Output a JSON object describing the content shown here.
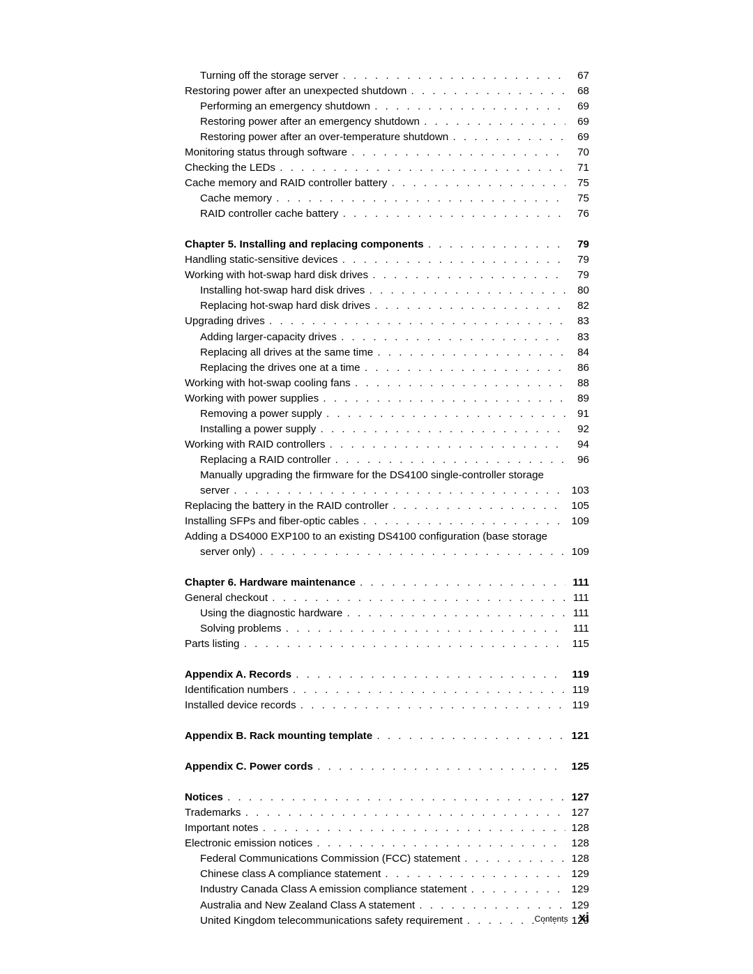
{
  "footer": {
    "label": "Contents",
    "page": "xi"
  },
  "entries": [
    {
      "label": "Turning off the storage server",
      "page": "67",
      "indent": 1,
      "bold": false
    },
    {
      "label": "Restoring power after an unexpected shutdown",
      "page": "68",
      "indent": 0,
      "bold": false
    },
    {
      "label": "Performing an emergency shutdown",
      "page": "69",
      "indent": 1,
      "bold": false
    },
    {
      "label": "Restoring power after an emergency shutdown",
      "page": "69",
      "indent": 1,
      "bold": false
    },
    {
      "label": "Restoring power after an over-temperature shutdown",
      "page": "69",
      "indent": 1,
      "bold": false
    },
    {
      "label": "Monitoring status through software",
      "page": "70",
      "indent": 0,
      "bold": false
    },
    {
      "label": "Checking the LEDs",
      "page": "71",
      "indent": 0,
      "bold": false
    },
    {
      "label": "Cache memory and RAID controller battery",
      "page": "75",
      "indent": 0,
      "bold": false
    },
    {
      "label": "Cache memory",
      "page": "75",
      "indent": 1,
      "bold": false
    },
    {
      "label": "RAID controller cache battery",
      "page": "76",
      "indent": 1,
      "bold": false
    },
    {
      "gap": true
    },
    {
      "label": "Chapter 5. Installing and replacing components",
      "page": "79",
      "indent": 0,
      "bold": true
    },
    {
      "label": "Handling static-sensitive devices",
      "page": "79",
      "indent": 0,
      "bold": false
    },
    {
      "label": "Working with hot-swap hard disk drives",
      "page": "79",
      "indent": 0,
      "bold": false
    },
    {
      "label": "Installing hot-swap hard disk drives",
      "page": "80",
      "indent": 1,
      "bold": false
    },
    {
      "label": "Replacing hot-swap hard disk drives",
      "page": "82",
      "indent": 1,
      "bold": false
    },
    {
      "label": "Upgrading drives",
      "page": "83",
      "indent": 0,
      "bold": false
    },
    {
      "label": "Adding larger-capacity drives",
      "page": "83",
      "indent": 1,
      "bold": false
    },
    {
      "label": "Replacing all drives at the same time",
      "page": "84",
      "indent": 1,
      "bold": false
    },
    {
      "label": "Replacing the drives one at a time",
      "page": "86",
      "indent": 1,
      "bold": false
    },
    {
      "label": "Working with hot-swap cooling fans",
      "page": "88",
      "indent": 0,
      "bold": false
    },
    {
      "label": "Working with power supplies",
      "page": "89",
      "indent": 0,
      "bold": false
    },
    {
      "label": "Removing a power supply",
      "page": "91",
      "indent": 1,
      "bold": false
    },
    {
      "label": "Installing a power supply",
      "page": "92",
      "indent": 1,
      "bold": false
    },
    {
      "label": "Working with RAID controllers",
      "page": "94",
      "indent": 0,
      "bold": false
    },
    {
      "label": "Replacing a RAID controller",
      "page": "96",
      "indent": 1,
      "bold": false
    },
    {
      "wrapLabel": "Manually upgrading the firmware for the DS4100 single-controller storage",
      "indent": 1
    },
    {
      "label": "server",
      "page": "103",
      "indent": 2,
      "bold": false
    },
    {
      "label": "Replacing the battery in the RAID controller",
      "page": "105",
      "indent": 0,
      "bold": false
    },
    {
      "label": "Installing SFPs and fiber-optic cables",
      "page": "109",
      "indent": 0,
      "bold": false
    },
    {
      "wrapLabel": "Adding a DS4000 EXP100 to an existing DS4100 configuration (base storage",
      "indent": 0
    },
    {
      "label": "server only)",
      "page": "109",
      "indent": 2,
      "bold": false
    },
    {
      "gap": true
    },
    {
      "label": "Chapter 6. Hardware maintenance",
      "page": "111",
      "indent": 0,
      "bold": true
    },
    {
      "label": "General checkout",
      "page": "111",
      "indent": 0,
      "bold": false
    },
    {
      "label": "Using the diagnostic hardware",
      "page": "111",
      "indent": 1,
      "bold": false
    },
    {
      "label": "Solving problems",
      "page": "111",
      "indent": 1,
      "bold": false
    },
    {
      "label": "Parts listing",
      "page": "115",
      "indent": 0,
      "bold": false
    },
    {
      "gap": true
    },
    {
      "label": "Appendix A. Records",
      "page": "119",
      "indent": 0,
      "bold": true
    },
    {
      "label": "Identification numbers",
      "page": "119",
      "indent": 0,
      "bold": false
    },
    {
      "label": "Installed device records",
      "page": "119",
      "indent": 0,
      "bold": false
    },
    {
      "gap": true
    },
    {
      "label": "Appendix B. Rack mounting template",
      "page": "121",
      "indent": 0,
      "bold": true
    },
    {
      "gap": true
    },
    {
      "label": "Appendix C. Power cords",
      "page": "125",
      "indent": 0,
      "bold": true
    },
    {
      "gap": true
    },
    {
      "label": "Notices",
      "page": "127",
      "indent": 0,
      "bold": true
    },
    {
      "label": "Trademarks",
      "page": "127",
      "indent": 0,
      "bold": false
    },
    {
      "label": "Important notes",
      "page": "128",
      "indent": 0,
      "bold": false
    },
    {
      "label": "Electronic emission notices",
      "page": "128",
      "indent": 0,
      "bold": false
    },
    {
      "label": "Federal Communications Commission (FCC) statement",
      "page": "128",
      "indent": 1,
      "bold": false
    },
    {
      "label": "Chinese class A compliance statement",
      "page": "129",
      "indent": 1,
      "bold": false
    },
    {
      "label": "Industry Canada Class A emission compliance statement",
      "page": "129",
      "indent": 1,
      "bold": false
    },
    {
      "label": "Australia and New Zealand Class A statement",
      "page": "129",
      "indent": 1,
      "bold": false
    },
    {
      "label": "United Kingdom telecommunications safety requirement",
      "page": "129",
      "indent": 1,
      "bold": false
    }
  ]
}
